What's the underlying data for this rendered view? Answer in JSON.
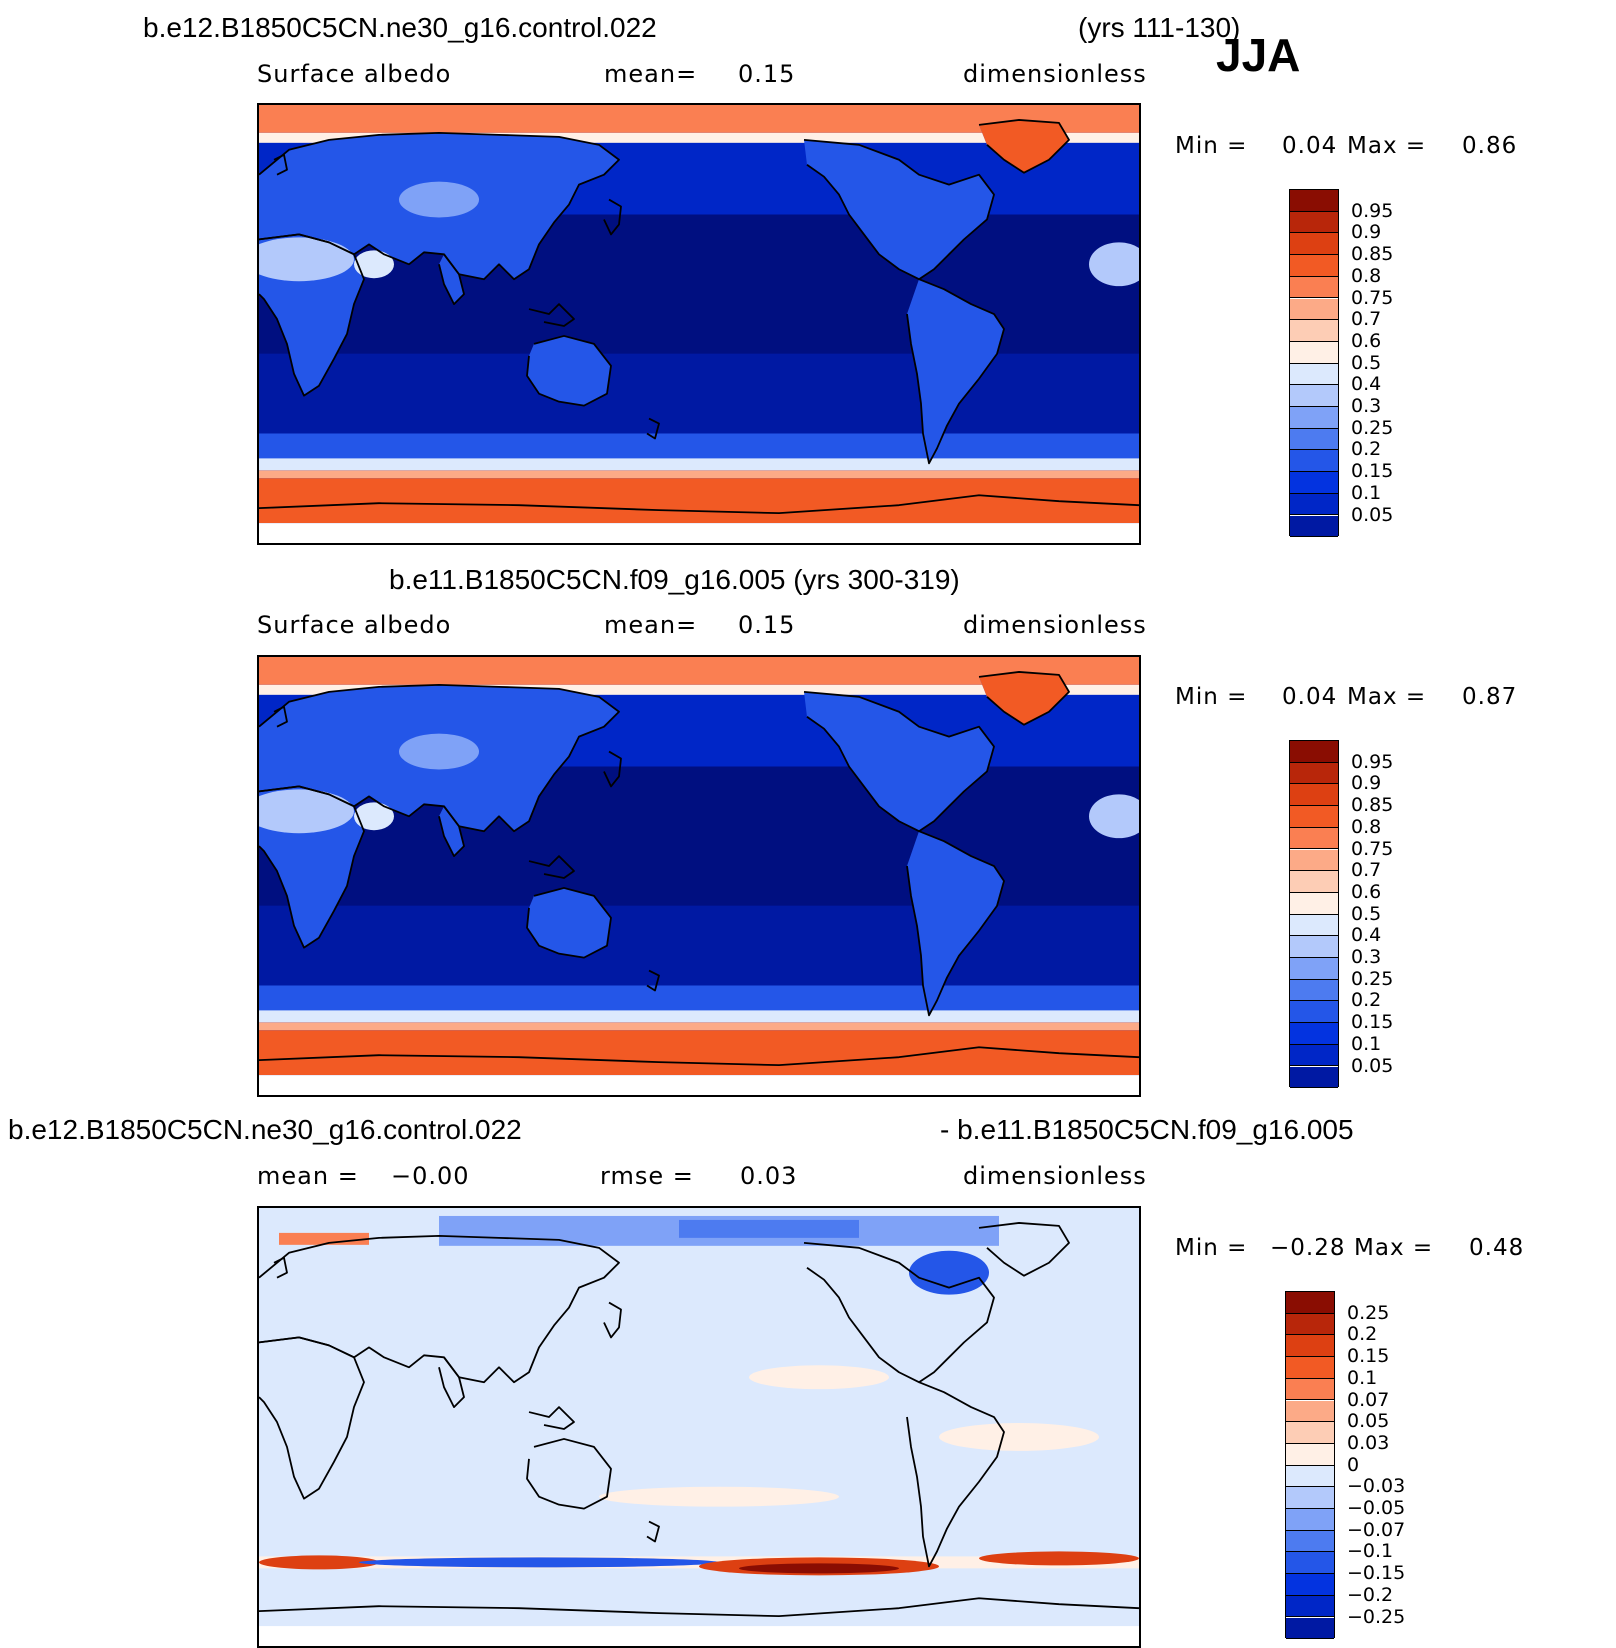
{
  "season": "JJA",
  "colors": {
    "abs_scale": [
      "#000f80",
      "#0019a3",
      "#0026c7",
      "#0333e0",
      "#2456e8",
      "#4d7bf0",
      "#7fa2f7",
      "#b3c9fb",
      "#dce9fd",
      "#fff0e6",
      "#fdcdb5",
      "#fcaa87",
      "#fa7f52",
      "#f25a24",
      "#dd4012",
      "#b8260a",
      "#8a0d02"
    ],
    "diff_scale": [
      "#000f80",
      "#0019a3",
      "#0026c7",
      "#0333e0",
      "#2456e8",
      "#4d7bf0",
      "#7fa2f7",
      "#b3c9fb",
      "#dce9fd",
      "#fff0e6",
      "#fdcdb5",
      "#fcaa87",
      "#fa7f52",
      "#f25a24",
      "#dd4012",
      "#b8260a",
      "#8a0d02"
    ]
  },
  "panels": [
    {
      "case": "b.e12.B1850C5CN.ne30_g16.control.022",
      "years": "(yrs 111-130)",
      "left": "Surface albedo",
      "center_label": "mean=",
      "center_value": "0.15",
      "right": "dimensionless",
      "min_label": "Min =",
      "min_value": "0.04",
      "max_label": "Max =",
      "max_value": "0.86",
      "map_type": "absolute",
      "legend": [
        "0.95",
        "0.9",
        "0.85",
        "0.8",
        "0.75",
        "0.7",
        "0.6",
        "0.5",
        "0.4",
        "0.3",
        "0.25",
        "0.2",
        "0.15",
        "0.1",
        "0.05"
      ]
    },
    {
      "case": "b.e11.B1850C5CN.f09_g16.005 (yrs 300-319)",
      "left": "Surface albedo",
      "center_label": "mean=",
      "center_value": "0.15",
      "right": "dimensionless",
      "min_label": "Min =",
      "min_value": "0.04",
      "max_label": "Max =",
      "max_value": "0.87",
      "map_type": "absolute",
      "legend": [
        "0.95",
        "0.9",
        "0.85",
        "0.8",
        "0.75",
        "0.7",
        "0.6",
        "0.5",
        "0.4",
        "0.3",
        "0.25",
        "0.2",
        "0.15",
        "0.1",
        "0.05"
      ]
    },
    {
      "case_left": "b.e12.B1850C5CN.ne30_g16.control.022",
      "case_right": "- b.e11.B1850C5CN.f09_g16.005",
      "left_label": "mean =",
      "left_value": "−0.00",
      "center_label": "rmse =",
      "center_value": "0.03",
      "right": "dimensionless",
      "min_label": "Min =",
      "min_value": "−0.28",
      "max_label": "Max =",
      "max_value": "0.48",
      "map_type": "difference",
      "legend": [
        "0.25",
        "0.2",
        "0.15",
        "0.1",
        "0.07",
        "0.05",
        "0.03",
        "0",
        "−0.03",
        "−0.05",
        "−0.07",
        "−0.1",
        "−0.15",
        "−0.2",
        "−0.25"
      ]
    }
  ]
}
